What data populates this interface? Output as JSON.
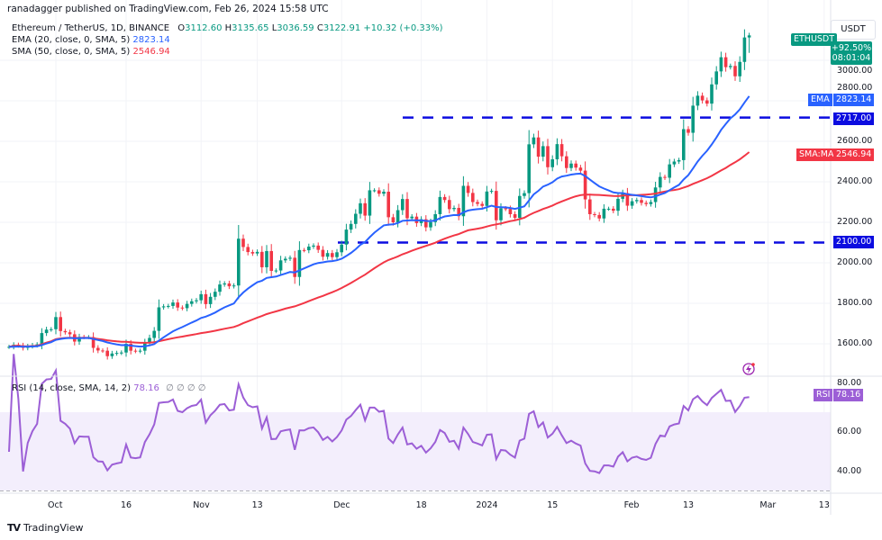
{
  "header": {
    "published": "ranadagger published on TradingView.com, Feb 26, 2024 15:58 UTC",
    "symbol": "Ethereum / TetherUS, 1D, BINANCE",
    "o_label": "O",
    "o": "3112.60",
    "h_label": "H",
    "h": "3135.65",
    "l_label": "L",
    "l": "3036.59",
    "c_label": "C",
    "c": "3122.91",
    "change": "+10.32 (+0.33%)",
    "ema_label": "EMA (20, close, 0, SMA, 5)",
    "ema_value": "2823.14",
    "sma_label": "SMA (50, close, 0, SMA, 5)",
    "sma_value": "2546.94"
  },
  "rsi_legend": {
    "label": "RSI (14, close, SMA, 14, 2)",
    "value": "78.16",
    "extras": "∅ ∅ ∅ ∅"
  },
  "price_axis": {
    "currency": "USDT",
    "ticks": [
      1600,
      1800,
      2000,
      2200,
      2400,
      2600,
      2800,
      3000
    ],
    "tick_labels": [
      "1600.00",
      "1800.00",
      "2000.00",
      "2200.00",
      "2400.00",
      "2600.00",
      "2800.00",
      "3000.00"
    ]
  },
  "rsi_axis": {
    "ticks": [
      40,
      60,
      80
    ],
    "tick_labels": [
      "40.00",
      "60.00",
      "80.00"
    ],
    "bands": [
      30,
      50,
      70
    ]
  },
  "time_axis": [
    {
      "label": "Oct",
      "date": "2023-10-01"
    },
    {
      "label": "16",
      "date": "2023-10-16"
    },
    {
      "label": "Nov",
      "date": "2023-11-01"
    },
    {
      "label": "13",
      "date": "2023-11-13"
    },
    {
      "label": "Dec",
      "date": "2023-12-01"
    },
    {
      "label": "18",
      "date": "2023-12-18"
    },
    {
      "label": "2024",
      "date": "2024-01-01"
    },
    {
      "label": "15",
      "date": "2024-01-15"
    },
    {
      "label": "Feb",
      "date": "2024-02-01"
    },
    {
      "label": "13",
      "date": "2024-02-13"
    },
    {
      "label": "Mar",
      "date": "2024-03-01"
    },
    {
      "label": "13",
      "date": "2024-03-13"
    }
  ],
  "tags": {
    "symbol": "ETHUSDT",
    "change_pct": "+92.50%",
    "countdown": "08:01:04",
    "ema": "EMA",
    "ema_value": "2823.14",
    "sma": "SMA:MA",
    "sma_value": "2546.94",
    "rsi": "RSI",
    "rsi_value": "78.16",
    "resistance": "2717.00",
    "support": "2100.00"
  },
  "colors": {
    "up": "#089981",
    "down": "#f23645",
    "ema": "#2962ff",
    "sma": "#f23645",
    "rsi": "#9c5fd6",
    "levels": "#0c0ce0"
  },
  "watermark": "TradingView",
  "chart_data": {
    "type": "candlestick",
    "symbol": "ETHUSDT",
    "interval": "1D",
    "ylim": [
      1500,
      3200
    ],
    "horizontal_levels": [
      2717.0,
      2100.0
    ],
    "indicators": [
      "EMA 20",
      "SMA 50",
      "RSI 14"
    ],
    "last_candle": {
      "open": 3112.6,
      "high": 3135.65,
      "low": 3036.59,
      "close": 3122.91
    },
    "closes_by_month": [
      {
        "month": "2023-09",
        "first_day": 21,
        "close": [
          1585,
          1595,
          1592,
          1580,
          1588,
          1593,
          1597,
          1653,
          1670,
          1672
        ]
      },
      {
        "month": "2023-10",
        "first_day": 1,
        "close": [
          1732,
          1663,
          1657,
          1647,
          1611,
          1634,
          1633,
          1633,
          1580,
          1567,
          1566,
          1539,
          1552,
          1555,
          1557,
          1600,
          1566,
          1564,
          1566,
          1605,
          1629,
          1664,
          1780,
          1785,
          1787,
          1804,
          1779,
          1776,
          1797,
          1810,
          1815
        ]
      },
      {
        "month": "2023-11",
        "first_day": 1,
        "close": [
          1845,
          1796,
          1832,
          1857,
          1893,
          1898,
          1884,
          1888,
          2119,
          2078,
          2053,
          2046,
          2054,
          1978,
          2058,
          1960,
          1962,
          2012,
          2020,
          2025,
          1930,
          2063,
          2062,
          2080,
          2085,
          2064,
          2030,
          2048,
          2028,
          2052
        ]
      },
      {
        "month": "2023-12",
        "first_day": 1,
        "close": [
          2090,
          2164,
          2192,
          2242,
          2294,
          2233,
          2358,
          2358,
          2341,
          2351,
          2225,
          2200,
          2260,
          2315,
          2220,
          2228,
          2196,
          2215,
          2175,
          2201,
          2240,
          2325,
          2310,
          2265,
          2271,
          2230,
          2380,
          2345,
          2300,
          2291,
          2281
        ]
      },
      {
        "month": "2024-01",
        "first_day": 1,
        "close": [
          2352,
          2355,
          2210,
          2269,
          2266,
          2240,
          2222,
          2330,
          2344,
          2585,
          2619,
          2524,
          2576,
          2472,
          2511,
          2586,
          2526,
          2468,
          2490,
          2470,
          2455,
          2313,
          2240,
          2236,
          2219,
          2267,
          2267,
          2257,
          2316,
          2344,
          2282
        ]
      },
      {
        "month": "2024-02",
        "first_day": 1,
        "close": [
          2304,
          2310,
          2296,
          2290,
          2300,
          2372,
          2424,
          2420,
          2486,
          2500,
          2507,
          2660,
          2642,
          2776,
          2825,
          2802,
          2786,
          2881,
          2945,
          3015,
          2966,
          2972,
          2921,
          2992,
          3112.6,
          3122.91
        ]
      }
    ]
  }
}
